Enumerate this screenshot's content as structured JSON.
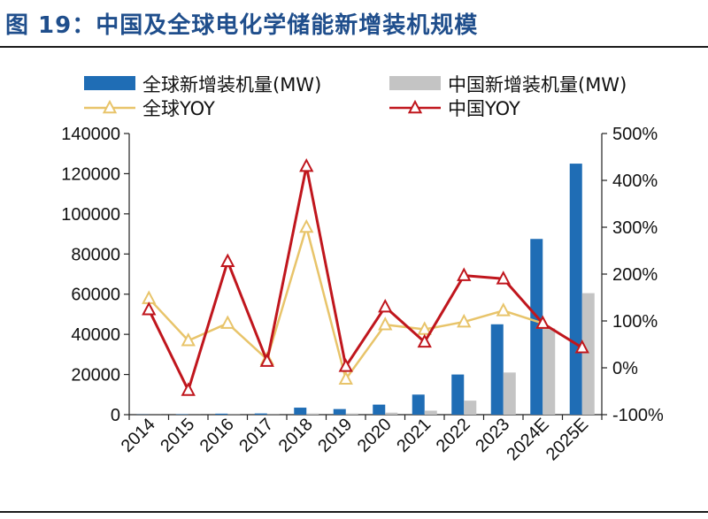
{
  "figure": {
    "title": "图 19：中国及全球电化学储能新增装机规模"
  },
  "chart_data": {
    "type": "bar",
    "categories": [
      "2014",
      "2015",
      "2016",
      "2017",
      "2018",
      "2019",
      "2020",
      "2021",
      "2022",
      "2023",
      "2024E",
      "2025E"
    ],
    "series": [
      {
        "name": "全球新增装机量(MW)",
        "type": "bar",
        "axis": "left",
        "color": "#1f6db5",
        "values": [
          100,
          200,
          500,
          600,
          3500,
          2800,
          5000,
          10000,
          20000,
          45000,
          87500,
          125000
        ]
      },
      {
        "name": "中国新增装机量(MW)",
        "type": "bar",
        "axis": "left",
        "color": "#c4c4c4",
        "values": [
          30,
          30,
          100,
          100,
          600,
          600,
          1000,
          2000,
          7000,
          21000,
          43000,
          60500
        ]
      },
      {
        "name": "全球YOY",
        "type": "line",
        "axis": "right",
        "color": "#e8c46a",
        "values": [
          1.48,
          0.58,
          0.95,
          0.18,
          3.0,
          -0.24,
          0.92,
          0.82,
          0.98,
          1.22,
          0.95,
          0.43
        ]
      },
      {
        "name": "中国YOY",
        "type": "line",
        "axis": "right",
        "color": "#c0161d",
        "values": [
          1.24,
          -0.48,
          2.27,
          0.14,
          4.3,
          0.03,
          1.3,
          0.55,
          1.97,
          1.9,
          0.95,
          0.43
        ]
      }
    ],
    "y_left": {
      "min": 0,
      "max": 140000,
      "ticks": [
        "0",
        "20000",
        "40000",
        "60000",
        "80000",
        "100000",
        "120000",
        "140000"
      ]
    },
    "y_right": {
      "min": -1.0,
      "max": 5.0,
      "ticks": [
        "-100%",
        "0%",
        "100%",
        "200%",
        "300%",
        "400%",
        "500%"
      ]
    },
    "title": "",
    "xlabel": "",
    "ylabel": "",
    "grid": false,
    "legend": "top"
  }
}
